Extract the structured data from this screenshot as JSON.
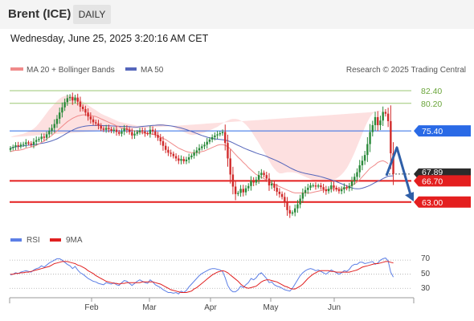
{
  "header": {
    "title": "Brent (ICE)",
    "timeframe": "DAILY"
  },
  "datetime": "Wednesday, June 25, 2025 3:20:16 AM CET",
  "legend": {
    "ma20": "MA 20 + Bollinger Bands",
    "ma50": "MA 50",
    "credit": "Research © 2025 Trading Central"
  },
  "rsi_legend": {
    "rsi": "RSI",
    "ma9": "9MA"
  },
  "colors": {
    "resistance": "#9bc773",
    "pivot": "#2a6ae6",
    "support": "#e41f1f",
    "price_tag": "#2b2b2b",
    "arrow": "#2f5fa8",
    "ma20": "#f08a8a",
    "ma50": "#5566bb",
    "bands": "#fddada",
    "candle_up": "#2a8a3a",
    "candle_down": "#d12a2a",
    "rsi": "#5c7fe6",
    "rsi_ma": "#e02020"
  },
  "chart_data": [
    {
      "type": "candlestick",
      "title": "Brent (ICE)",
      "x_labels": [
        "Feb",
        "Mar",
        "Apr",
        "May",
        "Jun"
      ],
      "ylim": [
        58.5,
        84.5
      ],
      "current_price": "67.89",
      "levels": [
        {
          "value": 82.4,
          "label": "82.40",
          "type": "resistance"
        },
        {
          "value": 80.2,
          "label": "80.20",
          "type": "resistance"
        },
        {
          "value": 75.4,
          "label": "75.40",
          "type": "pivot"
        },
        {
          "value": 66.7,
          "label": "66.70",
          "type": "support"
        },
        {
          "value": 63.0,
          "label": "63.00",
          "type": "support"
        }
      ],
      "forecast": "bearish",
      "close": [
        72.4,
        72.6,
        72.9,
        72.7,
        73.0,
        73.1,
        73.4,
        73.2,
        73.0,
        73.5,
        73.8,
        74.0,
        74.4,
        74.2,
        74.8,
        75.4,
        75.9,
        76.6,
        77.5,
        78.6,
        79.5,
        80.4,
        81.1,
        81.3,
        80.7,
        81.2,
        80.5,
        79.6,
        79.2,
        78.6,
        77.9,
        77.4,
        76.9,
        76.7,
        76.3,
        75.8,
        75.6,
        75.9,
        75.7,
        75.4,
        75.6,
        75.2,
        74.9,
        75.3,
        75.8,
        75.6,
        75.2,
        74.6,
        74.9,
        75.2,
        75.5,
        75.3,
        75.0,
        74.9,
        75.6,
        75.3,
        74.7,
        74.2,
        73.6,
        72.8,
        72.1,
        71.6,
        71.4,
        71.0,
        70.6,
        70.2,
        70.5,
        70.1,
        70.4,
        70.8,
        71.1,
        71.6,
        72.0,
        72.4,
        72.7,
        73.0,
        73.5,
        73.9,
        74.3,
        74.6,
        74.8,
        75.0,
        75.2,
        73.3,
        70.6,
        67.8,
        65.7,
        64.4,
        64.6,
        65.3,
        64.7,
        65.4,
        65.8,
        66.7,
        66.4,
        66.9,
        67.7,
        68.1,
        67.7,
        67.1,
        65.9,
        66.2,
        65.5,
        64.8,
        64.4,
        63.9,
        62.9,
        61.6,
        61.0,
        61.2,
        61.9,
        62.6,
        63.6,
        64.6,
        65.1,
        65.5,
        65.9,
        65.9,
        65.7,
        65.9,
        65.6,
        65.2,
        64.9,
        65.3,
        65.9,
        65.5,
        65.2,
        64.9,
        65.2,
        65.6,
        65.4,
        65.8,
        66.6,
        67.4,
        68.2,
        69.4,
        70.2,
        71.2,
        73.1,
        75.2,
        76.4,
        77.8,
        76.4,
        77.2,
        78.7,
        78.4,
        77.1,
        71.5,
        67.9
      ],
      "ma20": [
        71.8,
        71.9,
        72.0,
        72.0,
        72.1,
        72.2,
        72.4,
        72.5,
        72.6,
        72.7,
        72.9,
        73.1,
        73.4,
        73.6,
        74.0,
        74.3,
        74.6,
        75.0,
        75.4,
        75.8,
        76.2,
        76.6,
        77.0,
        77.3,
        77.6,
        77.8,
        78.0,
        78.1,
        78.2,
        78.2,
        78.2,
        78.1,
        78.0,
        77.9,
        77.7,
        77.5,
        77.3,
        77.1,
        76.9,
        76.7,
        76.5,
        76.3,
        76.1,
        75.9,
        75.8,
        75.7,
        75.6,
        75.5,
        75.4,
        75.3,
        75.2,
        75.1,
        75.0,
        74.9,
        74.9,
        74.8,
        74.7,
        74.5,
        74.3,
        74.1,
        73.9,
        73.6,
        73.3,
        73.0,
        72.7,
        72.4,
        72.2,
        72.0,
        71.8,
        71.7,
        71.6,
        71.6,
        71.6,
        71.7,
        71.8,
        71.9,
        72.1,
        72.3,
        72.5,
        72.7,
        72.9,
        73.0,
        73.0,
        72.9,
        72.6,
        72.3,
        71.8,
        71.3,
        70.8,
        70.4,
        69.9,
        69.5,
        69.0,
        68.6,
        68.2,
        67.8,
        67.6,
        67.3,
        67.1,
        66.8,
        66.5,
        66.3,
        66.1,
        65.9,
        65.7,
        65.5,
        65.3,
        65.1,
        64.9,
        64.7,
        64.6,
        64.6,
        64.6,
        64.6,
        64.6,
        64.6,
        64.6,
        64.7,
        64.8,
        64.9,
        65.0,
        65.1,
        65.1,
        65.2,
        65.3,
        65.3,
        65.3,
        65.3,
        65.3,
        65.4,
        65.5,
        65.7,
        65.9,
        66.2,
        66.5,
        66.9,
        67.4,
        67.9,
        68.4,
        68.9,
        69.2,
        69.5,
        69.9,
        70.1,
        70.2,
        70.0,
        69.7
      ],
      "bb_upper": [
        74.3,
        74.5,
        74.6,
        74.7,
        74.8,
        74.9,
        75.1,
        75.3,
        75.5,
        75.8,
        76.2,
        76.7,
        77.3,
        77.9,
        78.5,
        79.1,
        79.6,
        80.1,
        80.6,
        81.0,
        81.3,
        81.5,
        81.6,
        81.6,
        81.5,
        81.3,
        81.1,
        80.8,
        80.5,
        80.2,
        79.9,
        79.6,
        79.3,
        79.0,
        78.7,
        78.4,
        78.2,
        78.0,
        77.8,
        77.6,
        77.4,
        77.2,
        77.0,
        76.9,
        76.8,
        76.7,
        76.6,
        76.5,
        76.4,
        76.3,
        76.3,
        76.3,
        76.3,
        76.3,
        76.4,
        76.4,
        76.5,
        76.6,
        76.6,
        76.6,
        76.5,
        76.4,
        76.2,
        76.0,
        75.8,
        75.6,
        75.4,
        75.2,
        75.0,
        74.8,
        74.7,
        74.7,
        74.8,
        74.9,
        75.0,
        75.1,
        75.3,
        75.5,
        75.7,
        75.9,
        76.1,
        76.4,
        76.7,
        77.0,
        77.2,
        77.4,
        77.5,
        77.5,
        77.4,
        77.2,
        76.9,
        76.5,
        76.0,
        75.4,
        74.7,
        74.0,
        73.3,
        72.5,
        71.8,
        71.0,
        70.2,
        69.4,
        68.8,
        68.3,
        68.0,
        68.0,
        68.1,
        68.2,
        68.2,
        68.2,
        68.1,
        68.0,
        67.8,
        67.6,
        67.4,
        67.2,
        67.0,
        66.8,
        66.7,
        66.6,
        66.5,
        66.5,
        66.5,
        66.6,
        66.7,
        66.9,
        67.1,
        67.4,
        67.8,
        68.3,
        68.9,
        69.7,
        70.6,
        71.6,
        72.7,
        73.8,
        74.9,
        76.0,
        77.0,
        77.8,
        78.4,
        78.7,
        78.9,
        78.9,
        78.8
      ],
      "bb_lower": [
        69.3,
        69.3,
        69.4,
        69.3,
        69.4,
        69.5,
        69.7,
        69.7,
        69.7,
        69.6,
        69.6,
        69.5,
        69.5,
        69.3,
        69.5,
        69.5,
        69.6,
        69.9,
        70.2,
        70.6,
        71.1,
        71.7,
        72.4,
        73.0,
        73.7,
        74.3,
        74.9,
        75.4,
        75.9,
        76.2,
        76.5,
        76.6,
        76.7,
        76.8,
        76.7,
        76.6,
        76.4,
        76.2,
        76.0,
        75.8,
        75.6,
        75.4,
        75.2,
        74.9,
        74.8,
        74.7,
        74.6,
        74.5,
        74.4,
        74.3,
        74.1,
        73.9,
        73.7,
        73.5,
        73.4,
        73.2,
        72.9,
        72.4,
        72.0,
        71.6,
        71.3,
        70.8,
        70.4,
        70.0,
        69.6,
        69.2,
        69.0,
        68.8,
        68.6,
        68.6,
        68.5,
        68.5,
        68.4,
        68.5,
        68.6,
        68.7,
        68.9,
        69.1,
        69.3,
        69.5,
        69.7,
        69.6,
        69.3,
        68.8,
        68.0,
        67.2,
        66.1,
        65.1,
        64.2,
        63.6,
        62.9,
        62.5,
        62.0,
        61.8,
        61.7,
        61.6,
        61.9,
        62.1,
        62.4,
        62.6,
        62.8,
        63.2,
        63.4,
        63.5,
        63.4,
        63.0,
        62.5,
        62.0,
        61.6,
        61.2,
        61.1,
        61.0,
        61.0,
        61.0,
        61.1,
        61.2,
        61.4,
        61.6,
        61.8,
        62.0,
        62.3,
        62.5,
        62.7,
        62.9,
        63.1,
        63.0,
        62.9,
        62.7,
        62.5,
        62.4,
        62.2,
        62.0,
        61.9,
        61.8,
        61.8,
        61.9,
        62.1,
        62.3,
        62.4,
        62.3,
        61.9,
        61.3,
        60.8,
        60.4,
        60.2,
        60.1,
        60.2
      ]
    },
    {
      "type": "line",
      "title": "RSI",
      "ylim": [
        20,
        85
      ],
      "yticks": [
        30,
        50,
        70
      ],
      "series": [
        {
          "name": "RSI",
          "values": [
            49,
            50,
            52,
            51,
            53,
            54,
            55,
            54,
            53,
            56,
            58,
            59,
            62,
            60,
            63,
            66,
            68,
            70,
            72,
            72,
            70,
            67,
            64,
            62,
            58,
            61,
            56,
            52,
            50,
            47,
            44,
            42,
            40,
            39,
            37,
            36,
            35,
            38,
            37,
            36,
            38,
            35,
            34,
            38,
            41,
            40,
            37,
            34,
            37,
            40,
            42,
            40,
            38,
            37,
            42,
            39,
            35,
            33,
            31,
            28,
            26,
            24,
            24,
            23,
            24,
            22,
            26,
            24,
            27,
            32,
            36,
            40,
            44,
            48,
            51,
            53,
            55,
            57,
            58,
            58,
            57,
            56,
            54,
            45,
            34,
            28,
            25,
            25,
            28,
            33,
            31,
            35,
            38,
            44,
            42,
            45,
            50,
            52,
            48,
            44,
            38,
            39,
            35,
            33,
            32,
            30,
            28,
            27,
            26,
            30,
            36,
            42,
            48,
            52,
            55,
            57,
            58,
            57,
            55,
            56,
            54,
            52,
            50,
            53,
            56,
            54,
            52,
            50,
            52,
            55,
            54,
            57,
            62,
            64,
            64,
            67,
            67,
            65,
            66,
            67,
            68,
            64,
            66,
            70,
            72,
            73,
            69,
            53,
            46,
            45
          ]
        },
        {
          "name": "9MA",
          "values": [
            50,
            50,
            51,
            51,
            52,
            52,
            53,
            53,
            54,
            55,
            56,
            57,
            58,
            59,
            60,
            61,
            63,
            65,
            66,
            67,
            68,
            68,
            68,
            67,
            66,
            65,
            63,
            62,
            60,
            58,
            55,
            53,
            51,
            48,
            46,
            44,
            42,
            40,
            39,
            38,
            37,
            37,
            36,
            37,
            37,
            38,
            38,
            38,
            38,
            38,
            38,
            39,
            39,
            39,
            39,
            39,
            38,
            37,
            36,
            34,
            32,
            30,
            28,
            27,
            26,
            25,
            24,
            24,
            24,
            25,
            26,
            29,
            31,
            34,
            37,
            40,
            43,
            46,
            49,
            51,
            53,
            54,
            55,
            54,
            52,
            49,
            46,
            43,
            40,
            36,
            33,
            31,
            30,
            31,
            32,
            33,
            36,
            39,
            41,
            42,
            42,
            41,
            40,
            39,
            37,
            35,
            33,
            32,
            30,
            29,
            29,
            31,
            33,
            36,
            40,
            44,
            47,
            50,
            52,
            54,
            55,
            55,
            55,
            55,
            54,
            54,
            53,
            53,
            53,
            53,
            53,
            53,
            54,
            55,
            56,
            58,
            60,
            61,
            62,
            63,
            64,
            65,
            65,
            66,
            67,
            68,
            68,
            67,
            66,
            65
          ]
        }
      ]
    }
  ]
}
